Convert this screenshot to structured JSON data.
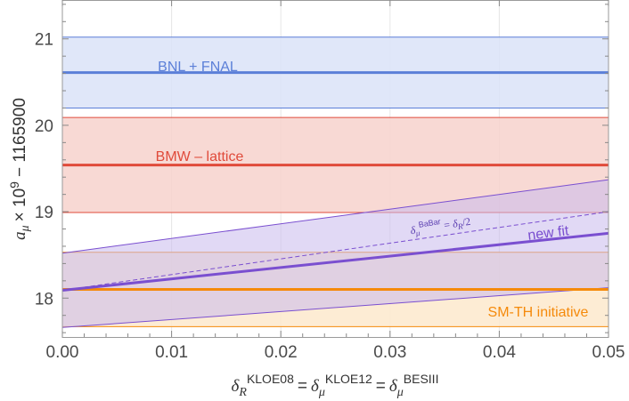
{
  "chart_data": {
    "type": "line",
    "xlim": [
      0.0,
      0.05
    ],
    "ylim": [
      17.55,
      21.45
    ],
    "x_ticks": [
      0.0,
      0.01,
      0.02,
      0.03,
      0.04,
      0.05
    ],
    "x_tick_labels": [
      "0.00",
      "0.01",
      "0.02",
      "0.03",
      "0.04",
      "0.05"
    ],
    "y_ticks": [
      18,
      19,
      20,
      21
    ],
    "y_tick_labels": [
      "18",
      "19",
      "20",
      "21"
    ],
    "xlabel": {
      "delta": "δ",
      "sub_R": "R",
      "sup1": "KLOE08",
      "eq1": "=",
      "sub_mu": "μ",
      "sup2": "KLOE12",
      "eq2": "=",
      "sup3": "BESIII"
    },
    "ylabel": {
      "a": "a",
      "sub": "μ",
      "times": "× 10",
      "exp": "9",
      "rest": "− 1165900"
    },
    "bands": [
      {
        "name": "BNL + FNAL",
        "central": 20.61,
        "lower": 20.2,
        "upper": 21.02,
        "color": "#5b7fd8",
        "fill": "#dbe3f8"
      },
      {
        "name": "BMW - lattice",
        "label_text": "BMW – lattice",
        "central": 19.54,
        "lower": 18.99,
        "upper": 20.09,
        "color": "#e04a3a",
        "fill": "#f7d2cd"
      },
      {
        "name": "SM-TH initiative",
        "central": 18.1,
        "lower": 17.67,
        "upper": 18.53,
        "color": "#f58a0b",
        "fill": "#fde9cc"
      }
    ],
    "new_fit": {
      "name": "new fit",
      "color": "#7a4fd0",
      "fill": "#c9b9ec",
      "x": [
        0.0,
        0.05
      ],
      "central": [
        18.09,
        18.75
      ],
      "lower": [
        17.66,
        18.12
      ],
      "upper": [
        18.52,
        19.37
      ]
    },
    "babar_line": {
      "delta": "δ",
      "sub_mu": "μ",
      "sup": "BaBar",
      "eq": "=",
      "rhs_delta": "δ",
      "rhs_sub": "R",
      "rhs_div": "/2",
      "x": [
        0.0,
        0.05
      ],
      "y": [
        18.09,
        19.0
      ]
    }
  }
}
